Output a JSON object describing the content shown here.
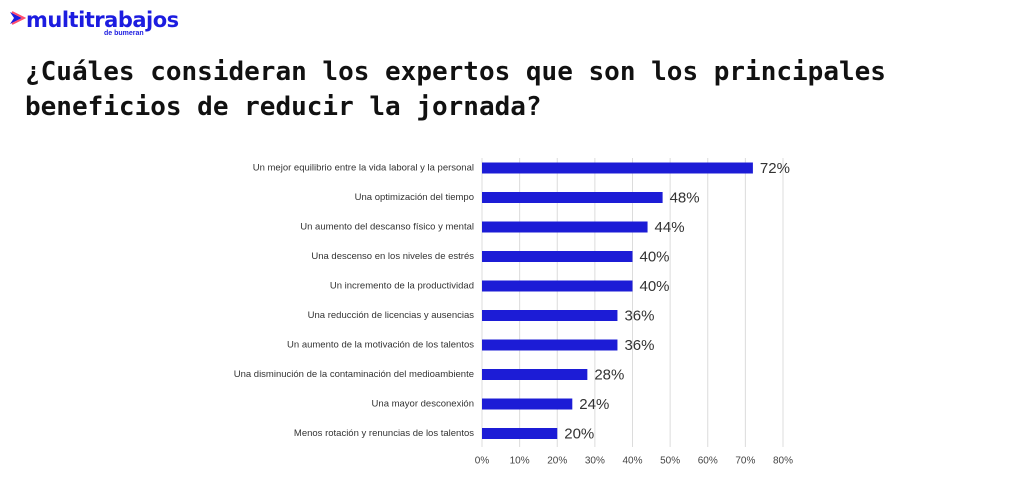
{
  "logo": {
    "name": "multitrabajos",
    "sub": "de bumeran"
  },
  "chart_data": {
    "type": "barh",
    "title": "¿Cuáles consideran los expertos que son los principales beneficios de reducir la jornada?",
    "categories": [
      "Un mejor equilibrio entre la vida laboral y la personal",
      "Una optimización del tiempo",
      "Un aumento del descanso físico y mental",
      "Una descenso en los niveles de estrés",
      "Un incremento de la productividad",
      "Una reducción de licencias y ausencias",
      "Un aumento de la motivación de los talentos",
      "Una disminución de la contaminación del medioambiente",
      "Una mayor desconexión",
      "Menos rotación y renuncias de los talentos"
    ],
    "values": [
      72,
      48,
      44,
      40,
      40,
      36,
      36,
      28,
      24,
      20
    ],
    "value_labels": [
      "72%",
      "48%",
      "44%",
      "40%",
      "40%",
      "36%",
      "36%",
      "28%",
      "24%",
      "20%"
    ],
    "color": "#1c1cd6",
    "xlim": [
      0,
      80
    ],
    "xticks": [
      {
        "value": 0,
        "label": "0%"
      },
      {
        "value": 10,
        "label": "10%"
      },
      {
        "value": 20,
        "label": "20%"
      },
      {
        "value": 30,
        "label": "30%"
      },
      {
        "value": 40,
        "label": "40%"
      },
      {
        "value": 50,
        "label": "50%"
      },
      {
        "value": 60,
        "label": "60%"
      },
      {
        "value": 70,
        "label": "70%"
      },
      {
        "value": 80,
        "label": "80%"
      }
    ],
    "grid": true
  }
}
